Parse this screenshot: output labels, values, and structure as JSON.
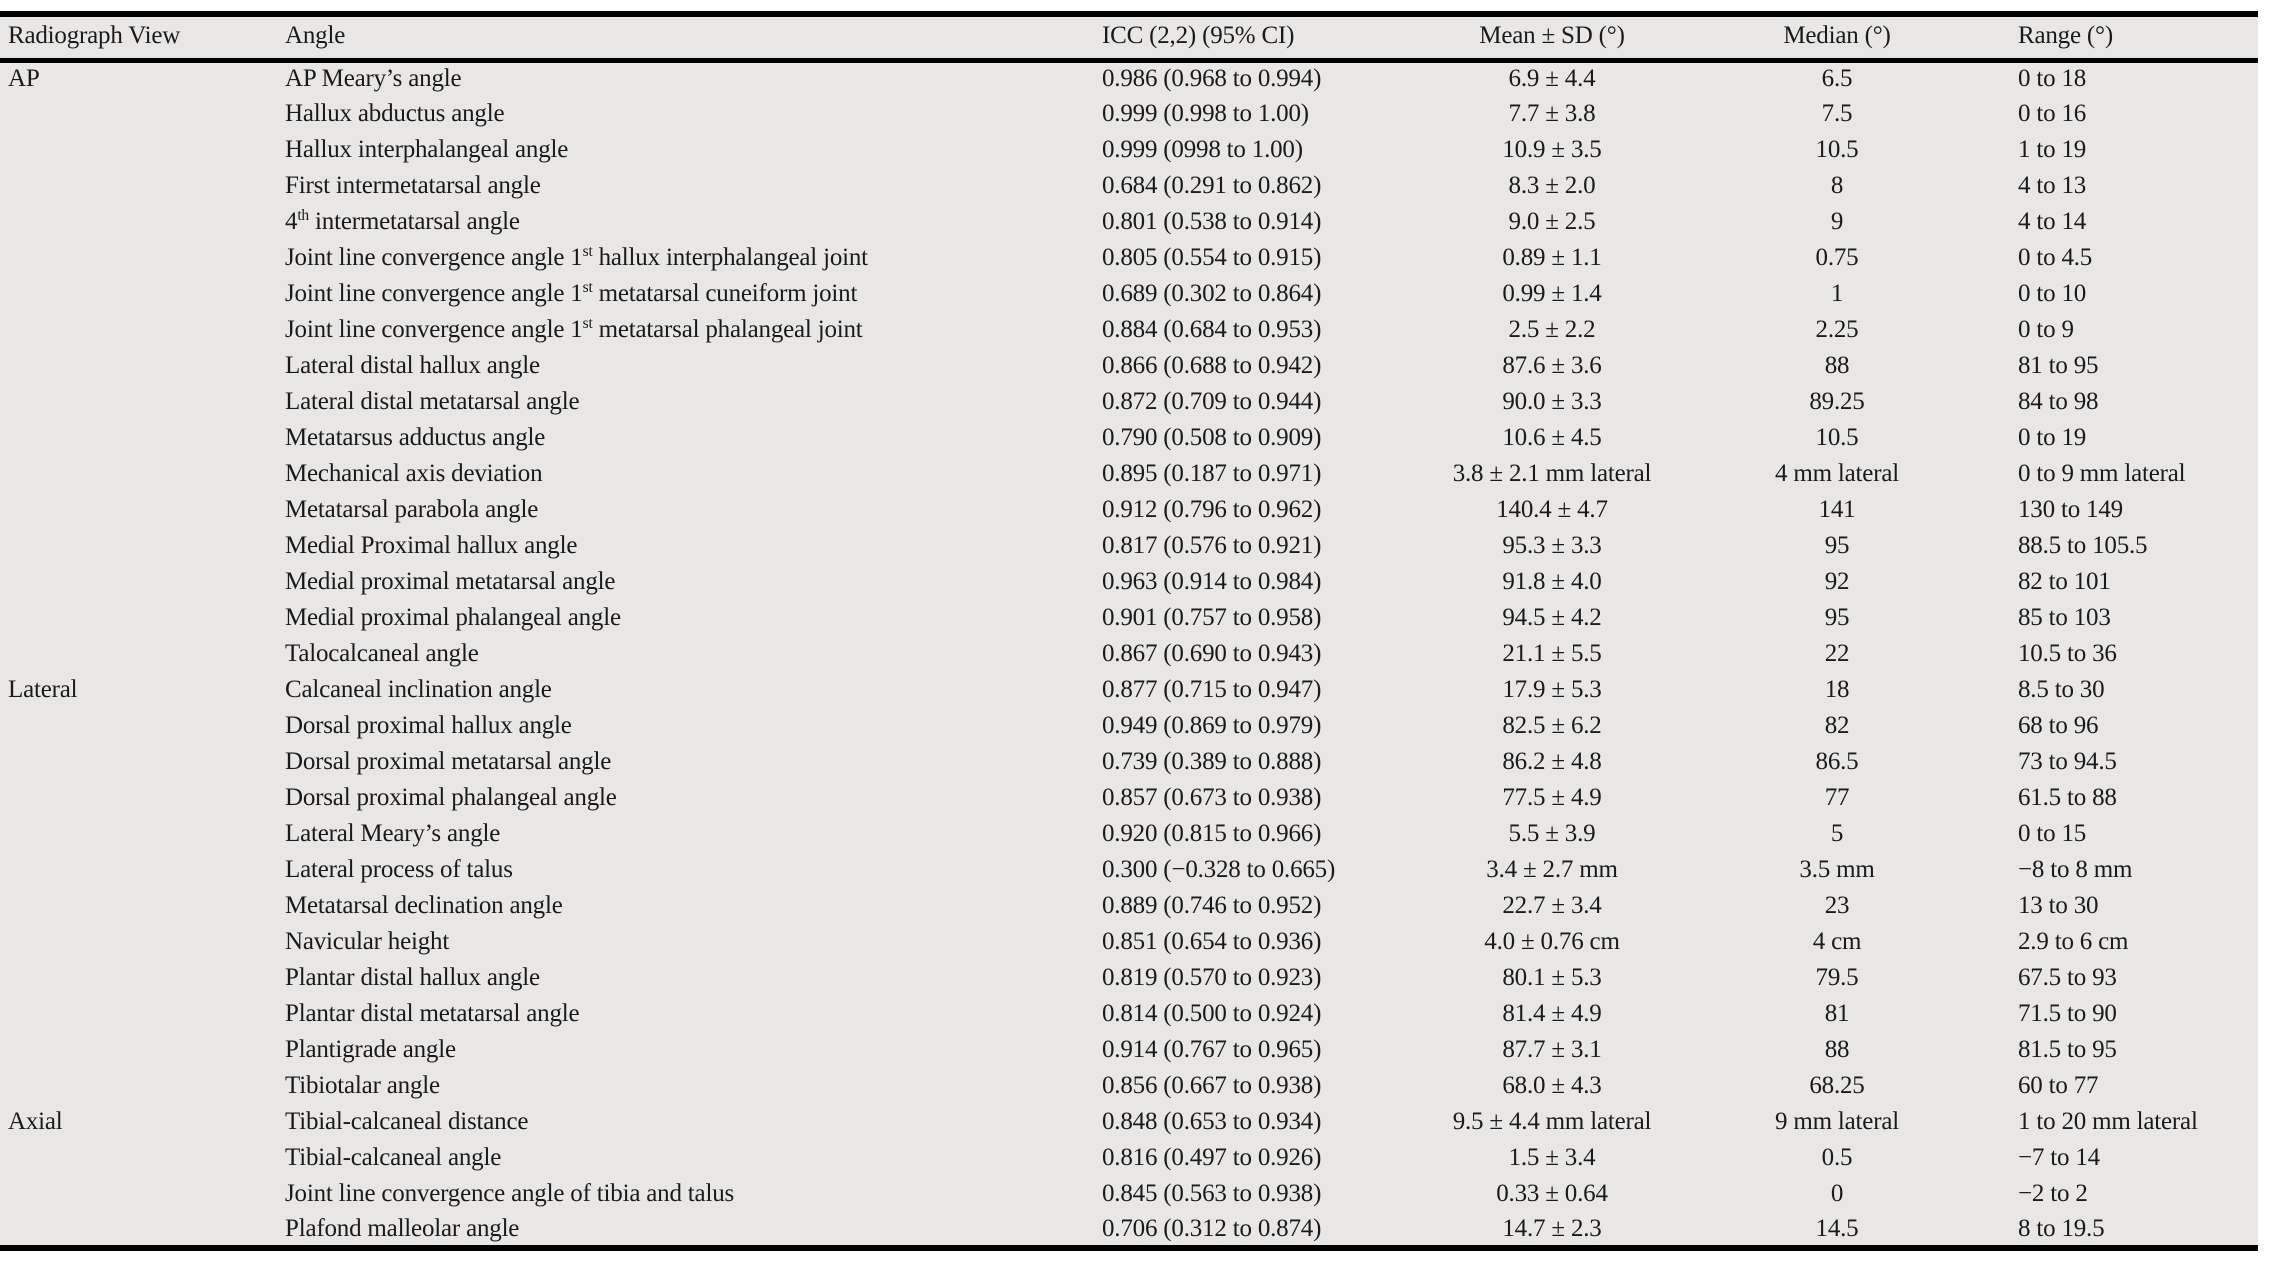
{
  "colors": {
    "table_background": "#e8e7e5",
    "text": "#1a1a1a",
    "rule": "#000000"
  },
  "table": {
    "columns": [
      {
        "key": "view",
        "label": "Radiograph View",
        "align": "left"
      },
      {
        "key": "angle",
        "label": "Angle",
        "align": "left"
      },
      {
        "key": "icc",
        "label": "ICC (2,2) (95% CI)",
        "align": "left"
      },
      {
        "key": "mean",
        "label": "Mean ± SD (°)",
        "align": "center"
      },
      {
        "key": "median",
        "label": "Median (°)",
        "align": "center"
      },
      {
        "key": "range",
        "label": "Range (°)",
        "align": "left"
      }
    ],
    "rows": [
      {
        "view": "AP",
        "angle": "AP Meary’s angle",
        "icc": "0.986 (0.968 to 0.994)",
        "mean": "6.9 ± 4.4",
        "median": "6.5",
        "range": "0 to 18"
      },
      {
        "view": "",
        "angle": "Hallux abductus angle",
        "icc": "0.999 (0.998 to 1.00)",
        "mean": "7.7 ± 3.8",
        "median": "7.5",
        "range": "0 to 16"
      },
      {
        "view": "",
        "angle": "Hallux interphalangeal angle",
        "icc": "0.999 (0998 to 1.00)",
        "mean": "10.9 ± 3.5",
        "median": "10.5",
        "range": "1 to 19"
      },
      {
        "view": "",
        "angle": "First intermetatarsal angle",
        "icc": "0.684 (0.291 to 0.862)",
        "mean": "8.3 ± 2.0",
        "median": "8",
        "range": "4 to 13"
      },
      {
        "view": "",
        "angle": "4^{th} intermetatarsal angle",
        "icc": "0.801 (0.538 to 0.914)",
        "mean": "9.0 ± 2.5",
        "median": "9",
        "range": "4 to 14"
      },
      {
        "view": "",
        "angle": "Joint line convergence angle 1^{st} hallux interphalangeal joint",
        "icc": "0.805 (0.554 to 0.915)",
        "mean": "0.89 ± 1.1",
        "median": "0.75",
        "range": "0 to 4.5"
      },
      {
        "view": "",
        "angle": "Joint line convergence angle 1^{st} metatarsal cuneiform joint",
        "icc": "0.689 (0.302 to 0.864)",
        "mean": "0.99 ± 1.4",
        "median": "1",
        "range": "0 to 10"
      },
      {
        "view": "",
        "angle": "Joint line convergence angle 1^{st} metatarsal phalangeal joint",
        "icc": "0.884 (0.684 to 0.953)",
        "mean": "2.5 ± 2.2",
        "median": "2.25",
        "range": "0 to 9"
      },
      {
        "view": "",
        "angle": "Lateral distal hallux angle",
        "icc": "0.866 (0.688 to 0.942)",
        "mean": "87.6 ± 3.6",
        "median": "88",
        "range": "81 to 95"
      },
      {
        "view": "",
        "angle": "Lateral distal metatarsal angle",
        "icc": "0.872 (0.709 to 0.944)",
        "mean": "90.0 ± 3.3",
        "median": "89.25",
        "range": "84 to 98"
      },
      {
        "view": "",
        "angle": "Metatarsus adductus angle",
        "icc": "0.790 (0.508 to 0.909)",
        "mean": "10.6 ± 4.5",
        "median": "10.5",
        "range": "0 to 19"
      },
      {
        "view": "",
        "angle": "Mechanical axis deviation",
        "icc": "0.895 (0.187 to 0.971)",
        "mean": "3.8 ± 2.1 mm lateral",
        "median": "4 mm lateral",
        "range": "0 to 9 mm lateral"
      },
      {
        "view": "",
        "angle": "Metatarsal parabola angle",
        "icc": "0.912 (0.796 to 0.962)",
        "mean": "140.4 ± 4.7",
        "median": "141",
        "range": "130 to 149"
      },
      {
        "view": "",
        "angle": "Medial Proximal hallux angle",
        "icc": "0.817 (0.576 to 0.921)",
        "mean": "95.3 ± 3.3",
        "median": "95",
        "range": "88.5 to 105.5"
      },
      {
        "view": "",
        "angle": "Medial proximal metatarsal angle",
        "icc": "0.963 (0.914 to 0.984)",
        "mean": "91.8 ± 4.0",
        "median": "92",
        "range": "82 to 101"
      },
      {
        "view": "",
        "angle": "Medial proximal phalangeal angle",
        "icc": "0.901 (0.757 to 0.958)",
        "mean": "94.5 ± 4.2",
        "median": "95",
        "range": "85 to 103"
      },
      {
        "view": "",
        "angle": "Talocalcaneal angle",
        "icc": "0.867 (0.690 to 0.943)",
        "mean": "21.1 ± 5.5",
        "median": "22",
        "range": "10.5 to 36"
      },
      {
        "view": "Lateral",
        "angle": "Calcaneal inclination angle",
        "icc": "0.877 (0.715 to 0.947)",
        "mean": "17.9 ± 5.3",
        "median": "18",
        "range": "8.5 to 30"
      },
      {
        "view": "",
        "angle": "Dorsal proximal hallux angle",
        "icc": "0.949 (0.869 to 0.979)",
        "mean": "82.5 ± 6.2",
        "median": "82",
        "range": "68 to 96"
      },
      {
        "view": "",
        "angle": "Dorsal proximal metatarsal angle",
        "icc": "0.739 (0.389 to 0.888)",
        "mean": "86.2 ± 4.8",
        "median": "86.5",
        "range": "73 to 94.5"
      },
      {
        "view": "",
        "angle": "Dorsal proximal phalangeal angle",
        "icc": "0.857 (0.673 to 0.938)",
        "mean": "77.5 ± 4.9",
        "median": "77",
        "range": "61.5 to 88"
      },
      {
        "view": "",
        "angle": "Lateral Meary’s angle",
        "icc": "0.920 (0.815 to 0.966)",
        "mean": "5.5 ± 3.9",
        "median": "5",
        "range": "0 to 15"
      },
      {
        "view": "",
        "angle": "Lateral process of talus",
        "icc": "0.300 (−0.328 to 0.665)",
        "mean": "3.4 ± 2.7 mm",
        "median": "3.5 mm",
        "range": "−8 to 8 mm"
      },
      {
        "view": "",
        "angle": "Metatarsal declination angle",
        "icc": "0.889 (0.746 to 0.952)",
        "mean": "22.7 ± 3.4",
        "median": "23",
        "range": "13 to 30"
      },
      {
        "view": "",
        "angle": "Navicular height",
        "icc": "0.851 (0.654 to 0.936)",
        "mean": "4.0 ± 0.76 cm",
        "median": "4 cm",
        "range": "2.9 to 6 cm"
      },
      {
        "view": "",
        "angle": "Plantar distal hallux angle",
        "icc": "0.819 (0.570 to 0.923)",
        "mean": "80.1 ± 5.3",
        "median": "79.5",
        "range": "67.5 to 93"
      },
      {
        "view": "",
        "angle": "Plantar distal metatarsal angle",
        "icc": "0.814 (0.500 to 0.924)",
        "mean": "81.4 ± 4.9",
        "median": "81",
        "range": "71.5 to 90"
      },
      {
        "view": "",
        "angle": "Plantigrade angle",
        "icc": "0.914 (0.767 to 0.965)",
        "mean": "87.7 ± 3.1",
        "median": "88",
        "range": "81.5 to 95"
      },
      {
        "view": "",
        "angle": "Tibiotalar angle",
        "icc": "0.856 (0.667 to 0.938)",
        "mean": "68.0 ± 4.3",
        "median": "68.25",
        "range": "60 to 77"
      },
      {
        "view": "Axial",
        "angle": "Tibial-calcaneal distance",
        "icc": "0.848 (0.653 to 0.934)",
        "mean": "9.5 ± 4.4 mm lateral",
        "median": "9 mm lateral",
        "range": "1 to 20 mm lateral"
      },
      {
        "view": "",
        "angle": "Tibial-calcaneal angle",
        "icc": "0.816 (0.497 to 0.926)",
        "mean": "1.5 ± 3.4",
        "median": "0.5",
        "range": "−7 to 14"
      },
      {
        "view": "",
        "angle": "Joint line convergence angle of tibia and talus",
        "icc": "0.845 (0.563 to 0.938)",
        "mean": "0.33 ± 0.64",
        "median": "0",
        "range": "−2 to 2"
      },
      {
        "view": "",
        "angle": "Plafond malleolar angle",
        "icc": "0.706 (0.312 to 0.874)",
        "mean": "14.7 ± 2.3",
        "median": "14.5",
        "range": "8 to 19.5"
      }
    ]
  }
}
